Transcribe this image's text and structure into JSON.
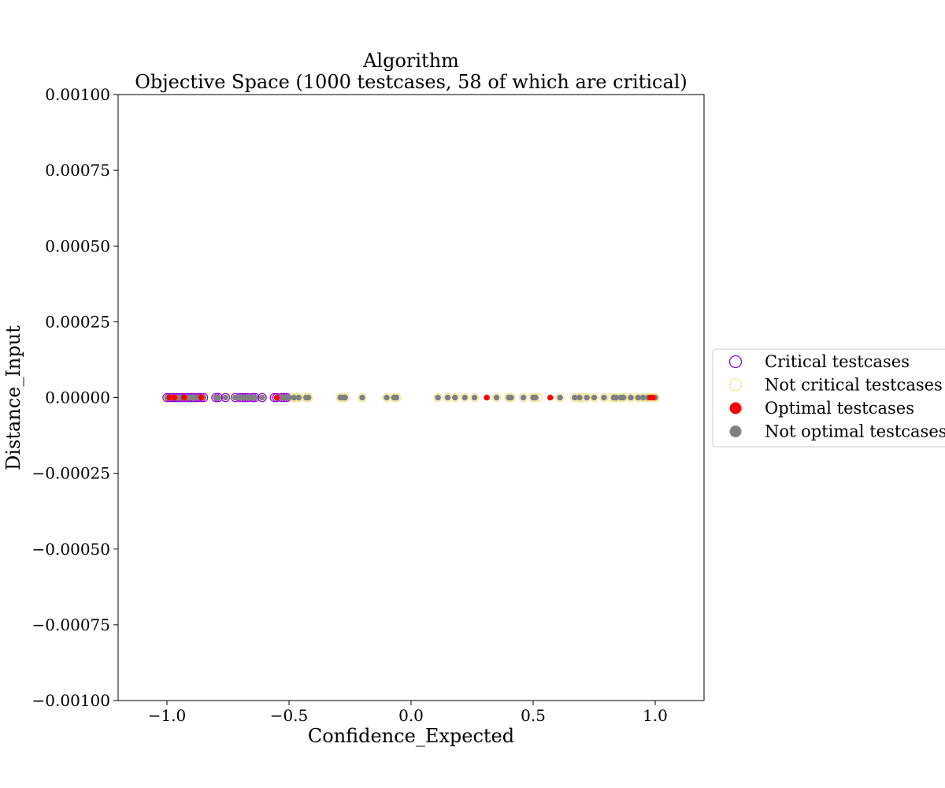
{
  "chart_data": {
    "type": "scatter",
    "title": "Algorithm",
    "subtitle": "Objective Space (1000 testcases, 58 of which are critical)",
    "xlabel": "Confidence_Expected",
    "ylabel": "Distance_Input",
    "xlim": [
      -1.2,
      1.2
    ],
    "ylim": [
      -0.001,
      0.001
    ],
    "x_ticks": [
      -1.0,
      -0.5,
      0.0,
      0.5,
      1.0
    ],
    "x_tick_labels": [
      "−1.0",
      "−0.5",
      "0.0",
      "0.5",
      "1.0"
    ],
    "y_ticks": [
      -0.001,
      -0.00075,
      -0.0005,
      -0.00025,
      0.0,
      0.00025,
      0.0005,
      0.00075,
      0.001
    ],
    "y_tick_labels": [
      "−0.00100",
      "−0.00075",
      "−0.00050",
      "−0.00025",
      "0.00000",
      "0.00025",
      "0.00050",
      "0.00075",
      "0.00100"
    ],
    "grid": false,
    "legend_position": "right, outside",
    "colors": {
      "critical": "#9400D3",
      "not_critical": "#F0E68C",
      "optimal": "#FF0000",
      "not_optimal": "#808080"
    },
    "legend": [
      {
        "label": "Critical testcases",
        "marker": "hollow",
        "color": "#9400D3"
      },
      {
        "label": "Not critical testcases",
        "marker": "hollow",
        "color": "#F0E68C"
      },
      {
        "label": "Optimal testcases",
        "marker": "filled",
        "color": "#FF0000"
      },
      {
        "label": "Not optimal testcases",
        "marker": "filled",
        "color": "#808080"
      }
    ],
    "series": [
      {
        "name": "Critical testcases",
        "marker": "hollow",
        "x": [
          -1.0,
          -0.99,
          -0.98,
          -0.97,
          -0.96,
          -0.95,
          -0.94,
          -0.93,
          -0.92,
          -0.91,
          -0.9,
          -0.89,
          -0.88,
          -0.87,
          -0.86,
          -0.85,
          -0.8,
          -0.79,
          -0.76,
          -0.72,
          -0.7,
          -0.69,
          -0.68,
          -0.67,
          -0.65,
          -0.64,
          -0.61,
          -0.56,
          -0.55,
          -0.53,
          -0.52,
          -0.51
        ],
        "y": [
          0,
          0,
          0,
          0,
          0,
          0,
          0,
          0,
          0,
          0,
          0,
          0,
          0,
          0,
          0,
          0,
          0,
          0,
          0,
          0,
          0,
          0,
          0,
          0,
          0,
          0,
          0,
          0,
          0,
          0,
          0,
          0
        ]
      },
      {
        "name": "Not critical testcases",
        "marker": "hollow",
        "x": [
          -0.5,
          -0.48,
          -0.47,
          -0.46,
          -0.43,
          -0.42,
          -0.29,
          -0.28,
          -0.27,
          -0.2,
          -0.1,
          -0.07,
          -0.06,
          0.11,
          0.15,
          0.18,
          0.22,
          0.26,
          0.35,
          0.4,
          0.41,
          0.46,
          0.5,
          0.51,
          0.52,
          0.61,
          0.67,
          0.69,
          0.7,
          0.72,
          0.75,
          0.79,
          0.82,
          0.83,
          0.84,
          0.86,
          0.87,
          0.9,
          0.93,
          0.95,
          0.96,
          0.97,
          0.99,
          1.0
        ],
        "y": [
          0,
          0,
          0,
          0,
          0,
          0,
          0,
          0,
          0,
          0,
          0,
          0,
          0,
          0,
          0,
          0,
          0,
          0,
          0,
          0,
          0,
          0,
          0,
          0,
          0,
          0,
          0,
          0,
          0,
          0,
          0,
          0,
          0,
          0,
          0,
          0,
          0,
          0,
          0,
          0,
          0,
          0,
          0,
          0
        ]
      },
      {
        "name": "Optimal testcases",
        "marker": "filled",
        "x": [
          -0.99,
          -0.97,
          -0.93,
          -0.86,
          -0.55,
          0.31,
          0.57,
          0.98,
          0.99
        ],
        "y": [
          0,
          0,
          0,
          0,
          0,
          0,
          0,
          0,
          0
        ]
      },
      {
        "name": "Not optimal testcases",
        "marker": "filled",
        "x": [
          -1.0,
          -0.98,
          -0.96,
          -0.95,
          -0.94,
          -0.92,
          -0.91,
          -0.9,
          -0.89,
          -0.88,
          -0.85,
          -0.8,
          -0.79,
          -0.76,
          -0.72,
          -0.7,
          -0.69,
          -0.68,
          -0.67,
          -0.65,
          -0.64,
          -0.61,
          -0.53,
          -0.52,
          -0.51,
          -0.5,
          -0.48,
          -0.46,
          -0.43,
          -0.42,
          -0.29,
          -0.28,
          -0.27,
          -0.2,
          -0.1,
          -0.07,
          -0.06,
          0.11,
          0.15,
          0.18,
          0.22,
          0.26,
          0.35,
          0.4,
          0.41,
          0.46,
          0.5,
          0.51,
          0.61,
          0.67,
          0.69,
          0.72,
          0.75,
          0.79,
          0.83,
          0.84,
          0.86,
          0.87,
          0.9,
          0.93,
          0.95,
          0.97,
          1.0
        ],
        "y": [
          0,
          0,
          0,
          0,
          0,
          0,
          0,
          0,
          0,
          0,
          0,
          0,
          0,
          0,
          0,
          0,
          0,
          0,
          0,
          0,
          0,
          0,
          0,
          0,
          0,
          0,
          0,
          0,
          0,
          0,
          0,
          0,
          0,
          0,
          0,
          0,
          0,
          0,
          0,
          0,
          0,
          0,
          0,
          0,
          0,
          0,
          0,
          0,
          0,
          0,
          0,
          0,
          0,
          0,
          0,
          0,
          0,
          0,
          0,
          0,
          0,
          0,
          0
        ]
      }
    ]
  }
}
